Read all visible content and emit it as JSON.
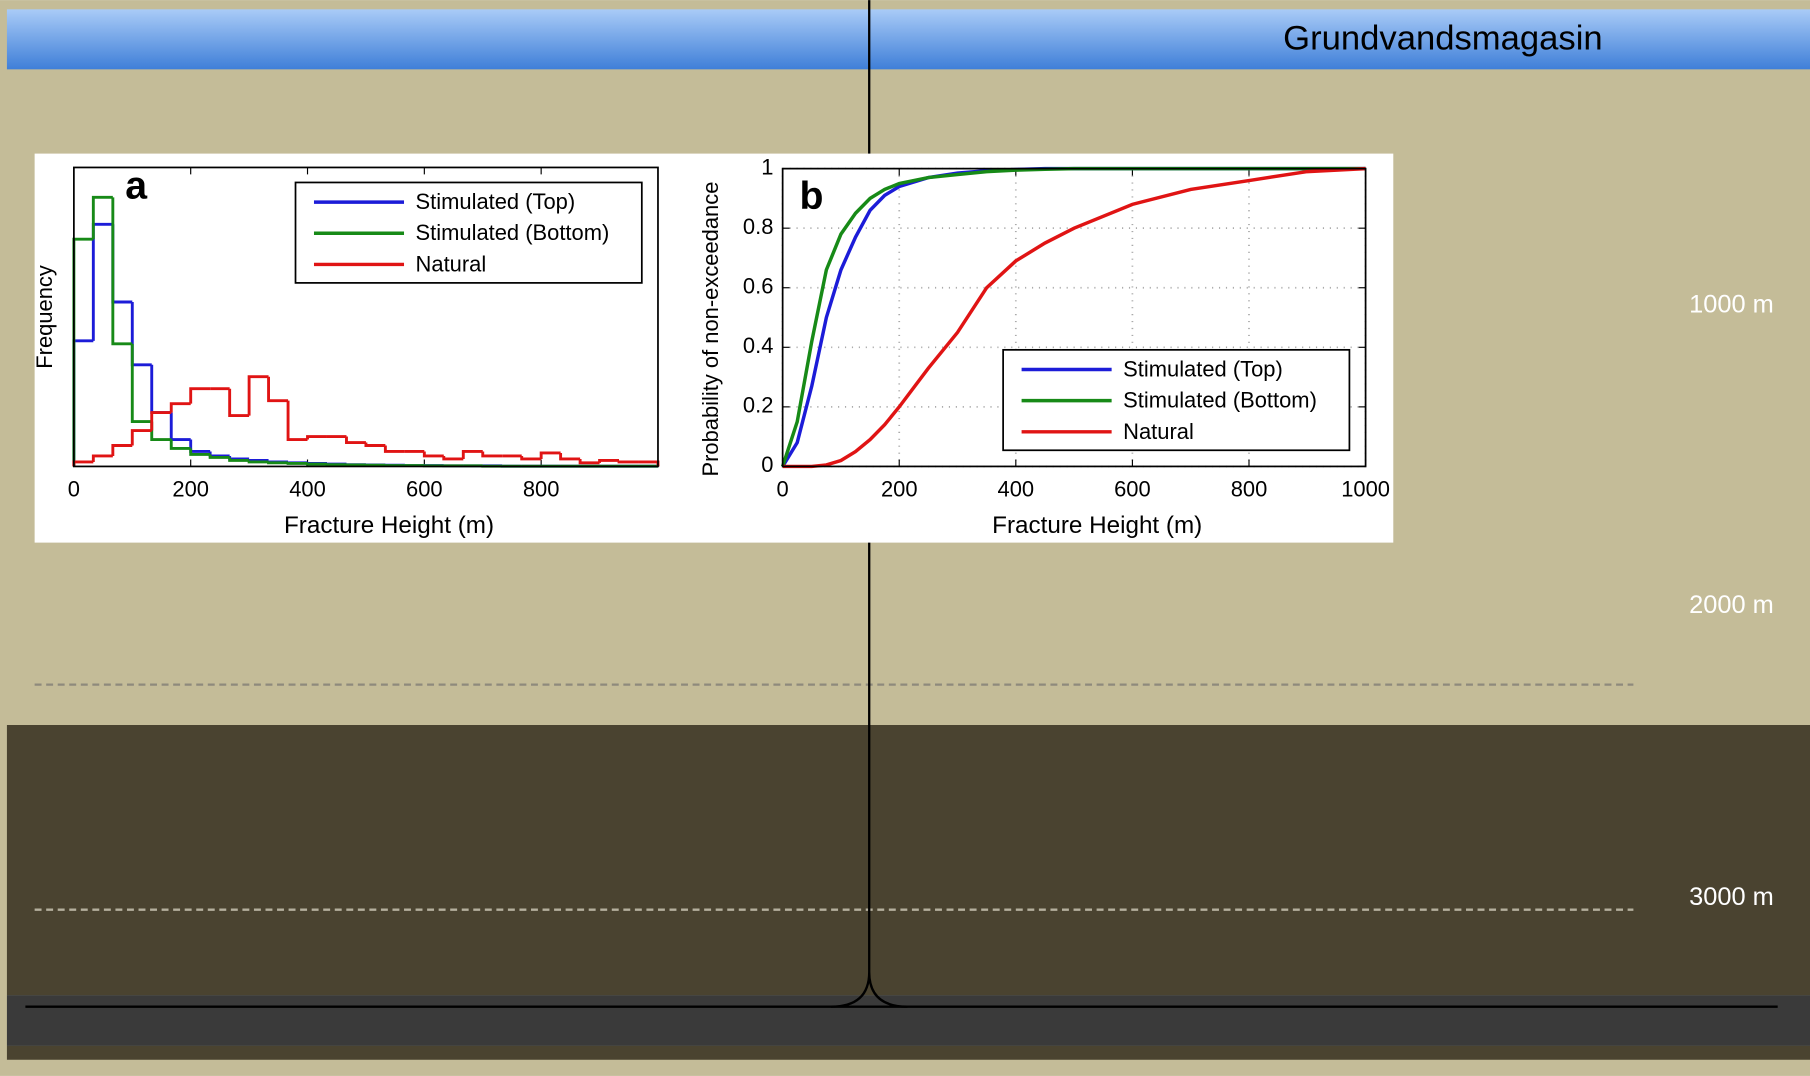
{
  "slide": {
    "title": "Grundvandsmagasin",
    "depth_labels": [
      "1000 m",
      "2000 m",
      "3000 m"
    ]
  },
  "chart_data": [
    {
      "type": "histogram",
      "panel_label": "a",
      "x_label": "Fracture Height  (m)",
      "y_label": "Frequency",
      "bins": [
        0,
        33.3,
        66.7,
        100,
        133.3,
        166.7,
        200,
        233.3,
        266.7,
        300,
        333.3,
        366.7,
        400,
        433.3,
        466.7,
        500,
        533.3,
        566.7,
        600,
        633.3,
        666.7,
        700,
        733.3,
        766.7,
        800,
        833.3,
        866.7,
        900,
        933.3,
        966.7,
        1000
      ],
      "series": [
        {
          "name": "Stimulated (Top)",
          "color": "#1c1cd8",
          "values": [
            0.42,
            0.81,
            0.55,
            0.34,
            0.18,
            0.09,
            0.05,
            0.035,
            0.025,
            0.02,
            0.015,
            0.012,
            0.01,
            0.008,
            0.006,
            0.005,
            0.004,
            0.003,
            0.003,
            0.002,
            0.002,
            0.002,
            0.001,
            0.001,
            0.001,
            0.001,
            0.001,
            0.001,
            0.001,
            0.001
          ]
        },
        {
          "name": "Stimulated (Bottom)",
          "color": "#178a17",
          "values": [
            0.76,
            0.9,
            0.41,
            0.15,
            0.09,
            0.06,
            0.04,
            0.03,
            0.02,
            0.015,
            0.012,
            0.01,
            0.008,
            0.006,
            0.005,
            0.004,
            0.003,
            0.003,
            0.002,
            0.002,
            0.002,
            0.001,
            0.001,
            0.001,
            0.001,
            0.001,
            0.001,
            0.001,
            0.001,
            0.001
          ]
        },
        {
          "name": "Natural",
          "color": "#e01414",
          "values": [
            0.015,
            0.035,
            0.07,
            0.12,
            0.18,
            0.21,
            0.26,
            0.26,
            0.17,
            0.3,
            0.22,
            0.09,
            0.1,
            0.1,
            0.08,
            0.07,
            0.05,
            0.05,
            0.035,
            0.025,
            0.05,
            0.035,
            0.035,
            0.025,
            0.045,
            0.025,
            0.012,
            0.02,
            0.015,
            0.015
          ]
        }
      ],
      "xlim": [
        0,
        1000
      ],
      "xticks": [
        0,
        200,
        400,
        600,
        800
      ],
      "ylim": [
        0,
        1
      ],
      "legend": "upper right"
    },
    {
      "type": "line",
      "panel_label": "b",
      "x_label": "Fracture Height  (m)",
      "y_label": "Probability of non-exceedance",
      "x": [
        0,
        25,
        50,
        75,
        100,
        125,
        150,
        175,
        200,
        250,
        300,
        350,
        400,
        450,
        500,
        600,
        700,
        800,
        900,
        1000
      ],
      "series": [
        {
          "name": "Stimulated (Top)",
          "color": "#1c1cd8",
          "values": [
            0,
            0.08,
            0.27,
            0.5,
            0.66,
            0.77,
            0.86,
            0.91,
            0.94,
            0.97,
            0.985,
            0.993,
            0.997,
            1,
            1,
            1,
            1,
            1,
            1,
            1
          ]
        },
        {
          "name": "Stimulated (Bottom)",
          "color": "#178a17",
          "values": [
            0,
            0.15,
            0.42,
            0.66,
            0.78,
            0.85,
            0.9,
            0.93,
            0.95,
            0.97,
            0.98,
            0.99,
            0.995,
            0.998,
            1,
            1,
            1,
            1,
            1,
            1
          ]
        },
        {
          "name": "Natural",
          "color": "#e01414",
          "values": [
            0,
            0,
            0,
            0.005,
            0.02,
            0.05,
            0.09,
            0.14,
            0.2,
            0.33,
            0.45,
            0.6,
            0.69,
            0.75,
            0.8,
            0.88,
            0.93,
            0.96,
            0.99,
            1
          ]
        }
      ],
      "xlim": [
        0,
        1000
      ],
      "xticks": [
        0,
        200,
        400,
        600,
        800,
        1000
      ],
      "ylim": [
        0,
        1
      ],
      "yticks": [
        0,
        0.2,
        0.4,
        0.6,
        0.8,
        1
      ],
      "grid": true,
      "legend": "lower right"
    }
  ]
}
